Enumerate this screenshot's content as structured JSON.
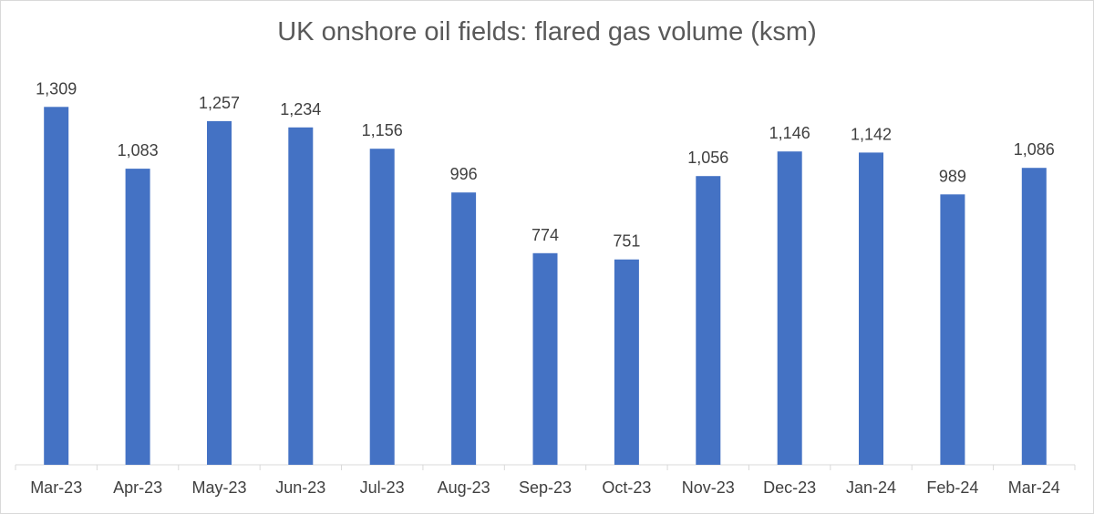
{
  "chart_data": {
    "type": "bar",
    "title": "UK onshore oil fields: flared gas volume (ksm)",
    "categories": [
      "Mar-23",
      "Apr-23",
      "May-23",
      "Jun-23",
      "Jul-23",
      "Aug-23",
      "Sep-23",
      "Oct-23",
      "Nov-23",
      "Dec-23",
      "Jan-24",
      "Feb-24",
      "Mar-24"
    ],
    "values": [
      1309,
      1083,
      1257,
      1234,
      1156,
      996,
      774,
      751,
      1056,
      1146,
      1142,
      989,
      1086
    ],
    "value_labels": [
      "1,309",
      "1,083",
      "1,257",
      "1,234",
      "1,156",
      "996",
      "774",
      "751",
      "1,056",
      "1,146",
      "1,142",
      "989",
      "1,086"
    ],
    "ylim": [
      0,
      1400
    ],
    "grid": false,
    "legend": "none",
    "bar_color": "#4472C4"
  }
}
